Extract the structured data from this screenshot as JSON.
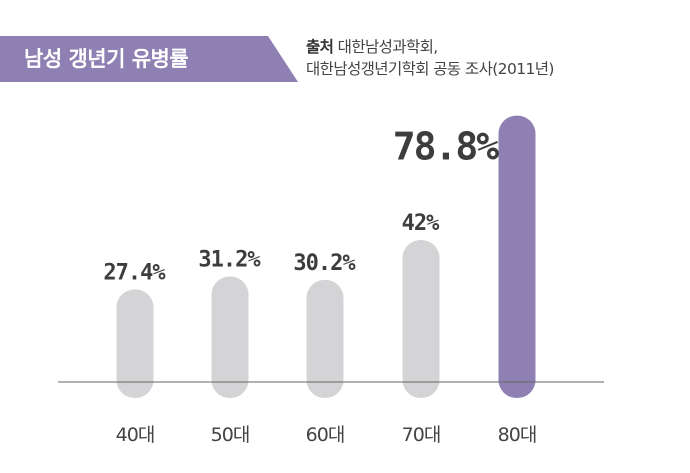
{
  "header": {
    "title": "남성 갱년기 유병률",
    "source_label": "출처",
    "source_line1": "대한남성과학회,",
    "source_line2": "대한남성갱년기학회 공동 조사(2011년)"
  },
  "colors": {
    "banner": "#8e80b3",
    "bar_default": "#d4d4d6",
    "bar_highlight": "#8e80b3",
    "highlight_label": "#8e80b3",
    "label": "#3d3d3d",
    "baseline": "#666666"
  },
  "chart_data": {
    "type": "bar",
    "title": "남성 갱년기 유병률",
    "categories": [
      "40대",
      "50대",
      "60대",
      "70대",
      "80대"
    ],
    "values": [
      27.4,
      31.2,
      30.2,
      42,
      78.8
    ],
    "value_labels": [
      "27.4%",
      "31.2%",
      "30.2%",
      "42%",
      "78.8%"
    ],
    "highlight_index": 4,
    "ylim": [
      0,
      100
    ],
    "grid": false,
    "legend": "none"
  }
}
